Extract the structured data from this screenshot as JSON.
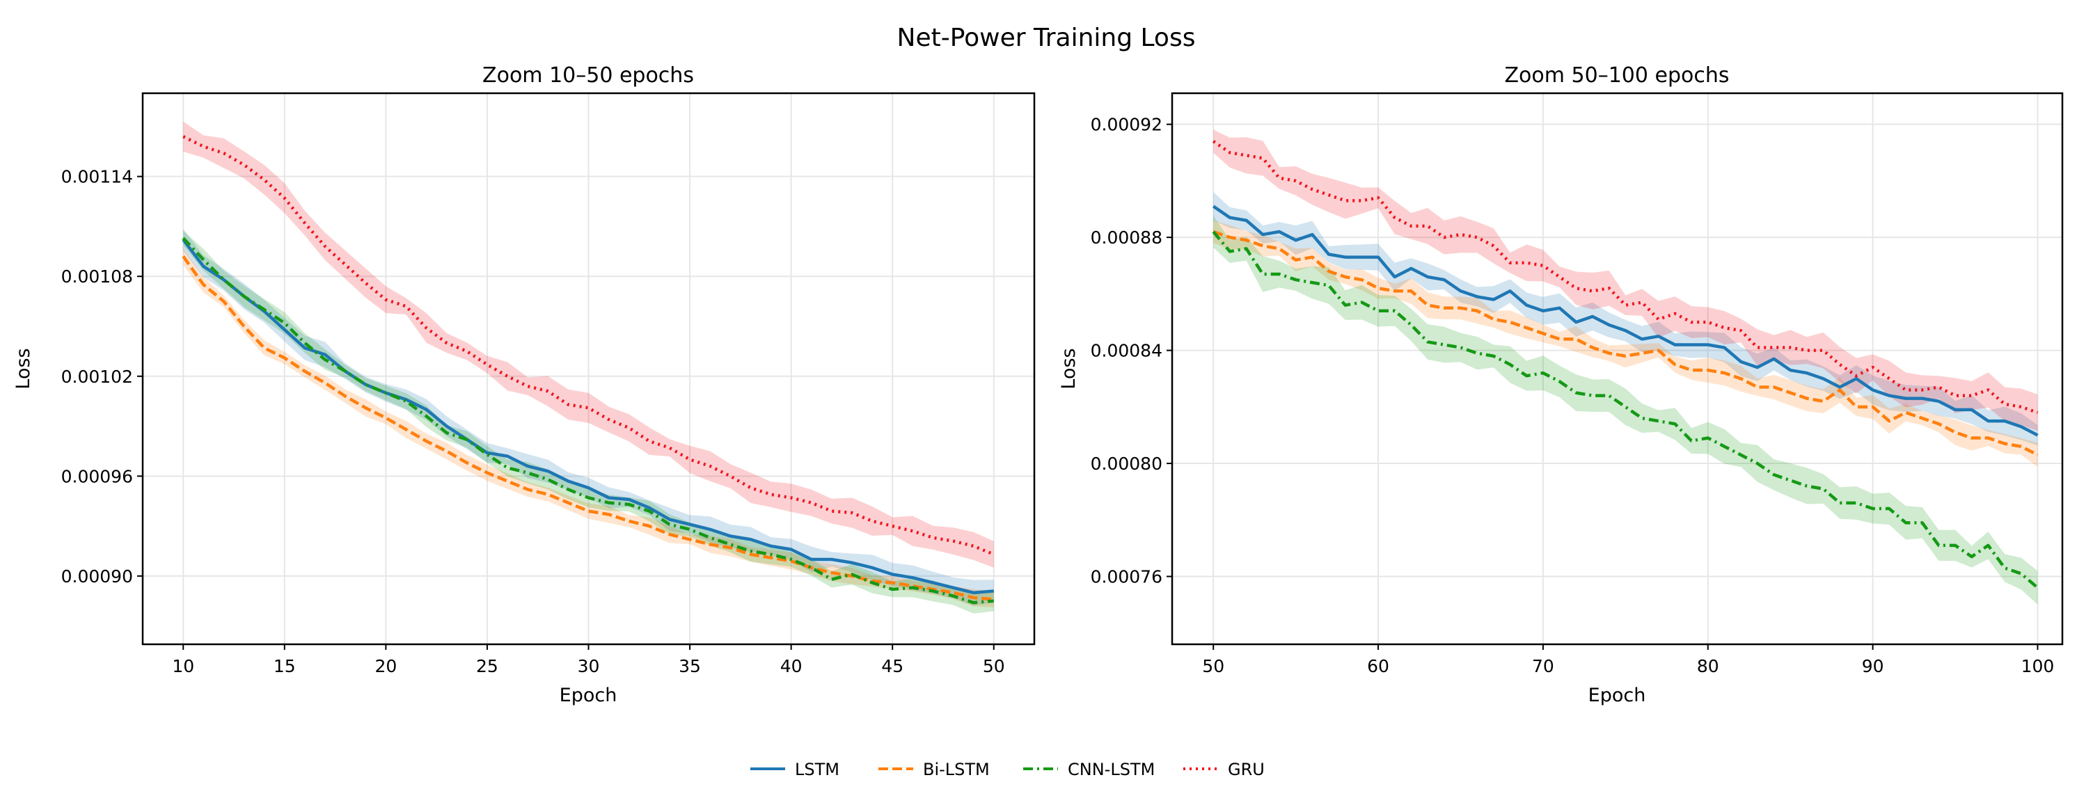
{
  "chart_data": {
    "type": "line",
    "title": "Net-Power Training Loss",
    "legend": {
      "placement": "bottom-center",
      "entries": [
        "LSTM",
        "Bi-LSTM",
        "CNN-LSTM",
        "GRU"
      ]
    },
    "series_styles": [
      {
        "name": "LSTM",
        "color": "#1f77b4",
        "dash": "solid"
      },
      {
        "name": "Bi-LSTM",
        "color": "#ff7f0e",
        "dash": "dashed"
      },
      {
        "name": "CNN-LSTM",
        "color": "#159915",
        "dash": "dashdot"
      },
      {
        "name": "GRU",
        "color": "#f0141e",
        "dash": "dotted"
      }
    ],
    "panels": [
      {
        "title": "Zoom 10–50 epochs",
        "xlabel": "Epoch",
        "ylabel": "Loss",
        "xlim": [
          8,
          52
        ],
        "ylim": [
          0.000859,
          0.00119
        ],
        "xticks": [
          10,
          15,
          20,
          25,
          30,
          35,
          40,
          45,
          50
        ],
        "yticks": [
          "0.00090",
          "0.00096",
          "0.00102",
          "0.00108",
          "0.00114"
        ],
        "grid": true,
        "x_start": 10,
        "value_scale": 1e-06,
        "series": [
          {
            "name": "LSTM",
            "std": 6,
            "values": [
              1102,
              1086,
              1078,
              1068,
              1059,
              1048,
              1037,
              1033,
              1023,
              1015,
              1010,
              1006,
              1000,
              990,
              982,
              974,
              972,
              966,
              963,
              957,
              953,
              947,
              946,
              941,
              934,
              931,
              928,
              924,
              922,
              918,
              916,
              910,
              910,
              908,
              905,
              901,
              899,
              896,
              893,
              890,
              891
            ]
          },
          {
            "name": "Bi-LSTM",
            "std": 4,
            "values": [
              1092,
              1075,
              1065,
              1050,
              1037,
              1031,
              1023,
              1016,
              1008,
              1001,
              995,
              988,
              981,
              975,
              968,
              962,
              957,
              952,
              949,
              944,
              939,
              937,
              933,
              930,
              925,
              922,
              919,
              917,
              913,
              911,
              909,
              905,
              902,
              900,
              897,
              896,
              894,
              892,
              890,
              887,
              886
            ]
          },
          {
            "name": "CNN-LSTM",
            "std": 5,
            "values": [
              1103,
              1090,
              1078,
              1068,
              1060,
              1052,
              1040,
              1030,
              1023,
              1015,
              1010,
              1005,
              996,
              986,
              982,
              973,
              965,
              962,
              958,
              952,
              947,
              944,
              943,
              939,
              931,
              928,
              923,
              919,
              915,
              913,
              910,
              905,
              898,
              901,
              896,
              892,
              893,
              891,
              888,
              884,
              885
            ]
          },
          {
            "name": "GRU",
            "std": 7,
            "values": [
              1164,
              1158,
              1154,
              1147,
              1138,
              1127,
              1112,
              1098,
              1087,
              1076,
              1066,
              1062,
              1049,
              1040,
              1035,
              1027,
              1020,
              1014,
              1011,
              1003,
              1001,
              994,
              989,
              981,
              977,
              970,
              966,
              960,
              953,
              949,
              947,
              944,
              939,
              938,
              933,
              930,
              927,
              923,
              921,
              918,
              913
            ]
          }
        ]
      },
      {
        "title": "Zoom 50–100 epochs",
        "xlabel": "Epoch",
        "ylabel": "Loss",
        "xlim": [
          47.5,
          101.5
        ],
        "ylim": [
          0.000736,
          0.000931
        ],
        "xticks": [
          50,
          60,
          70,
          80,
          90,
          100
        ],
        "yticks": [
          "0.00076",
          "0.00080",
          "0.00084",
          "0.00088",
          "0.00092"
        ],
        "grid": true,
        "x_start": 50,
        "value_scale": 1e-06,
        "series": [
          {
            "name": "LSTM",
            "std": 4,
            "values": [
              891,
              887,
              886,
              881,
              882,
              879,
              881,
              874,
              873,
              873,
              873,
              866,
              869,
              866,
              865,
              861,
              859,
              858,
              861,
              856,
              854,
              855,
              850,
              852,
              849,
              847,
              844,
              845,
              842,
              842,
              842,
              841,
              836,
              834,
              837,
              833,
              832,
              830,
              827,
              830,
              826,
              824,
              823,
              823,
              822,
              819,
              819,
              815,
              815,
              813,
              810
            ]
          },
          {
            "name": "Bi-LSTM",
            "std": 3.5,
            "values": [
              882,
              880,
              879,
              877,
              876,
              872,
              873,
              868,
              866,
              865,
              862,
              861,
              861,
              856,
              855,
              855,
              854,
              851,
              850,
              848,
              846,
              844,
              844,
              841,
              839,
              838,
              839,
              840,
              835,
              833,
              833,
              832,
              830,
              827,
              827,
              825,
              823,
              822,
              826,
              820,
              820,
              815,
              818,
              816,
              814,
              811,
              809,
              809,
              807,
              806,
              803
            ]
          },
          {
            "name": "CNN-LSTM",
            "std": 5,
            "values": [
              882,
              875,
              876,
              867,
              867,
              865,
              864,
              863,
              856,
              857,
              854,
              854,
              849,
              843,
              842,
              841,
              839,
              838,
              835,
              831,
              832,
              829,
              825,
              824,
              824,
              820,
              816,
              815,
              814,
              808,
              809,
              806,
              803,
              800,
              796,
              794,
              792,
              791,
              786,
              786,
              784,
              784,
              779,
              779,
              771,
              771,
              767,
              771,
              763,
              761,
              756
            ]
          },
          {
            "name": "GRU",
            "std": 5,
            "values": [
              914,
              910,
              909,
              908,
              901,
              900,
              897,
              895,
              893,
              893,
              894,
              887,
              884,
              884,
              880,
              881,
              880,
              877,
              871,
              871,
              870,
              866,
              862,
              861,
              862,
              856,
              857,
              851,
              853,
              850,
              850,
              848,
              847,
              841,
              841,
              841,
              840,
              840,
              835,
              831,
              834,
              830,
              826,
              826,
              827,
              824,
              824,
              826,
              821,
              820,
              818
            ]
          }
        ]
      }
    ]
  }
}
